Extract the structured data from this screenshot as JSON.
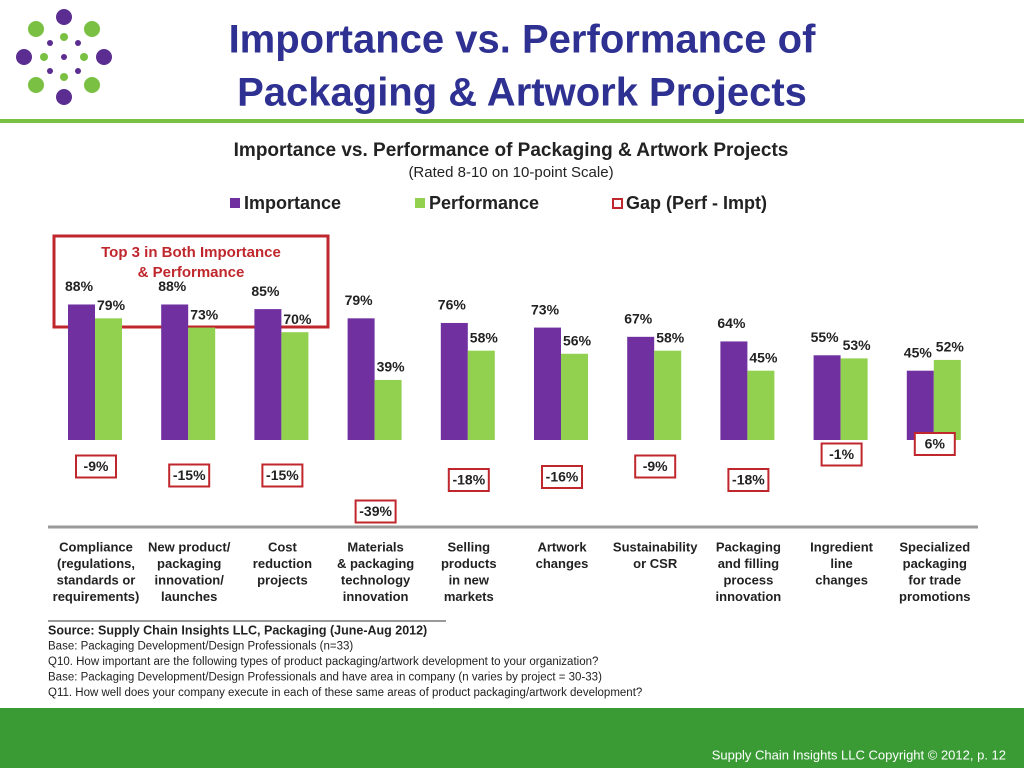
{
  "slide": {
    "title": [
      "Importance vs. Performance of",
      "Packaging & Artwork Projects"
    ],
    "notes": [
      "Source:  Supply Chain Insights LLC, Packaging (June-Aug 2012)",
      "Base:  Packaging Development/Design Professionals (n=33)",
      "Q10. How important are the following types of product packaging/artwork development to your organization?",
      "Base:  Packaging Development/Design Professionals and have area in company (n varies by project = 30-33)",
      "Q11. How well does your company execute in each of these same areas of product packaging/artwork development?"
    ],
    "footer": "Supply Chain Insights LLC Copyright © 2012, p. 12"
  },
  "chart_data": {
    "type": "bar",
    "title": "Importance vs. Performance of Packaging & Artwork Projects",
    "subtitle": "(Rated 8-10 on 10-point Scale)",
    "annotation": [
      "Top 3 in Both Importance",
      "& Performance"
    ],
    "categories": [
      [
        "Compliance",
        "(regulations,",
        "standards or",
        "requirements)"
      ],
      [
        "New product/",
        "packaging",
        "innovation/",
        "launches"
      ],
      [
        "Cost",
        "reduction",
        "projects"
      ],
      [
        "Materials",
        "& packaging",
        "technology",
        "innovation"
      ],
      [
        "Selling",
        "products",
        "in new",
        "markets"
      ],
      [
        "Artwork",
        "changes"
      ],
      [
        "Sustainability",
        "or CSR"
      ],
      [
        "Packaging",
        "and filling",
        "process",
        "innovation"
      ],
      [
        "Ingredient",
        "line",
        "changes"
      ],
      [
        "Specialized",
        "packaging",
        "for trade",
        "promotions"
      ]
    ],
    "series": [
      {
        "name": "Importance",
        "color": "#7030a0",
        "values": [
          88,
          88,
          85,
          79,
          76,
          73,
          67,
          64,
          55,
          45
        ],
        "value_labels": [
          "88%",
          "88%",
          "85%",
          "79%",
          "76%",
          "73%",
          "67%",
          "64%",
          "55%",
          "45%"
        ]
      },
      {
        "name": "Performance",
        "color": "#92d050",
        "values": [
          79,
          73,
          70,
          39,
          58,
          56,
          58,
          45,
          53,
          52
        ],
        "value_labels": [
          "79%",
          "73%",
          "70%",
          "39%",
          "58%",
          "56%",
          "58%",
          "45%",
          "53%",
          "52%"
        ]
      },
      {
        "name": "Gap (Perf - Impt)",
        "color": "#c0272d",
        "values": [
          -9,
          -15,
          -15,
          -39,
          -18,
          -16,
          -9,
          -18,
          -1,
          6
        ],
        "value_labels": [
          "-9%",
          "-15%",
          "-15%",
          "-39%",
          "-18%",
          "-16%",
          "-9%",
          "-18%",
          "-1%",
          "6%"
        ]
      }
    ]
  }
}
